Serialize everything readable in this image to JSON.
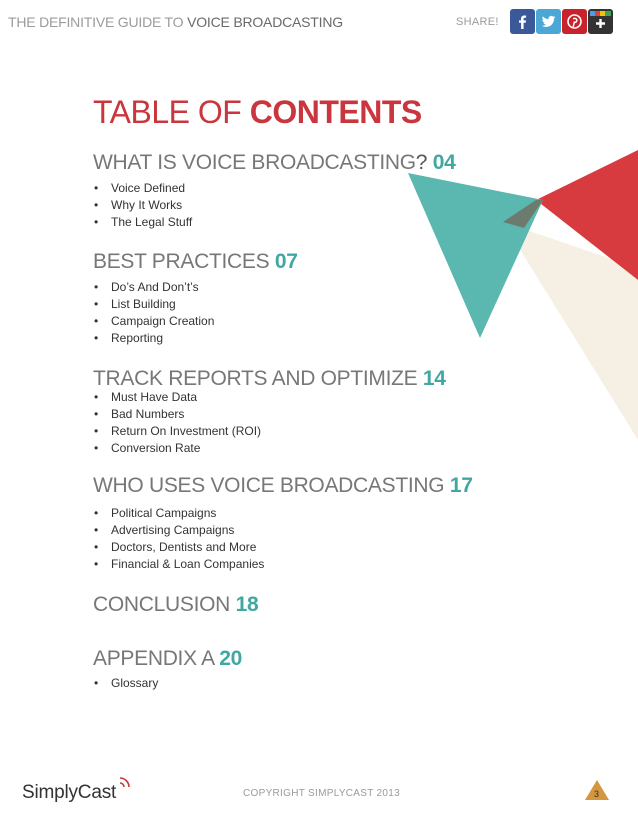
{
  "header": {
    "title_light": "THE DEFINITIVE GUIDE TO",
    "title_strong": "VOICE BROADCASTING",
    "share_label": "SHARE!",
    "share_buttons": [
      {
        "name": "facebook",
        "icon": "facebook-icon",
        "color": "#3b5998"
      },
      {
        "name": "twitter",
        "icon": "twitter-icon",
        "color": "#4aa7d6"
      },
      {
        "name": "pinterest",
        "icon": "pinterest-icon",
        "color": "#c8232c"
      },
      {
        "name": "google-plus",
        "icon": "google-plus-icon",
        "color": "#333333"
      }
    ]
  },
  "toc": {
    "title_light": "TABLE OF",
    "title_strong": "CONTENTS",
    "sections": [
      {
        "title": "WHAT IS VOICE BROADCASTING",
        "suffix": "?",
        "page": "04",
        "items": [
          "Voice Defined",
          "Why It Works",
          "The Legal Stuff"
        ]
      },
      {
        "title": "BEST PRACTICES",
        "suffix": "",
        "page": "07",
        "items": [
          "Do’s And Don’t’s",
          "List Building",
          "Campaign Creation",
          "Reporting"
        ]
      },
      {
        "title": "TRACK REPORTS AND OPTIMIZE",
        "suffix": "",
        "page": "14",
        "items": [
          "Must Have Data",
          "Bad Numbers",
          "Return On Investment (ROI)",
          "Conversion Rate"
        ]
      },
      {
        "title": "WHO USES VOICE BROADCASTING",
        "suffix": "",
        "page": "17",
        "items": [
          "Political Campaigns",
          "Advertising Campaigns",
          "Doctors, Dentists and More",
          "Financial & Loan Companies"
        ]
      },
      {
        "title": "CONCLUSION",
        "suffix": "",
        "page": "18",
        "items": []
      },
      {
        "title": "APPENDIX A",
        "suffix": "",
        "page": "20",
        "items": [
          "Glossary"
        ]
      }
    ]
  },
  "footer": {
    "logo": "SimplyCast",
    "copyright": "COPYRIGHT SIMPLYCAST 2013",
    "page_number": "3"
  },
  "colors": {
    "accent_red": "#c9363d",
    "accent_teal": "#40a7a2",
    "cream": "#f5efe4"
  }
}
